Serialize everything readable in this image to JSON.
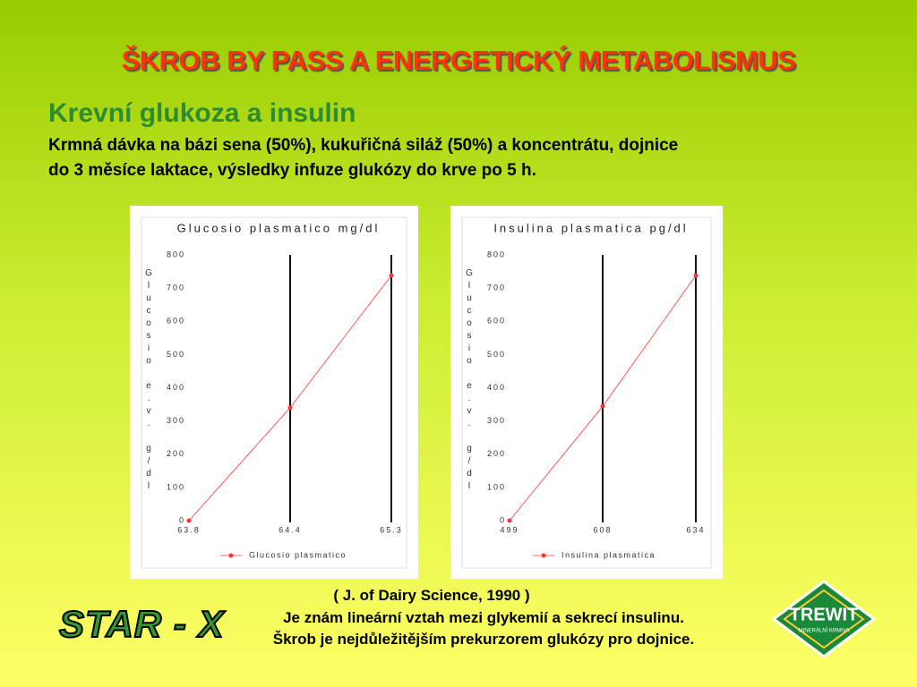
{
  "slide": {
    "title": "ŠKROB BY PASS  A ENERGETICKÝ METABOLISMUS",
    "heading": "Krevní glukoza a insulin",
    "description": [
      "Krmná dávka na bázi sena (50%), kukuřičná siláž (50%) a koncentrátu, dojnice",
      "do 3 měsíce laktace, výsledky infuze glukózy do krve po 5 h."
    ],
    "reference": "( J. of Dairy Science, 1990 )",
    "conclusion": [
      "Je znám lineární vztah mezi  glykemií a sekrecí  insulinu.",
      "Škrob je nejdůležitějším prekurzorem glukózy pro dojnice."
    ],
    "logo_left": "STAR - X",
    "logo_right": "TREWIT",
    "logo_right_sub": "MINERÁLNÍ KRMIVA"
  },
  "chart_data": [
    {
      "type": "line",
      "title": "Glucosio plasmatico mg/dl",
      "y_label": "Glucosio e.v. g/dl",
      "categories": [
        "63.8",
        "64.4",
        "65.3"
      ],
      "series": [
        {
          "name": "Glucosio plasmatico",
          "color": "#ff3333",
          "values": [
            0,
            340,
            738
          ]
        }
      ],
      "ylim": [
        0,
        800
      ],
      "yticks": [
        0,
        100,
        200,
        300,
        400,
        500,
        600,
        700,
        800
      ]
    },
    {
      "type": "line",
      "title": "Insulina plasmatica pg/dl",
      "y_label": "Glucosio e.v. g/dl",
      "categories": [
        "499",
        "608",
        "634"
      ],
      "series": [
        {
          "name": "Insulina plasmatica",
          "color": "#ff3333",
          "values": [
            0,
            344,
            738
          ]
        }
      ],
      "ylim": [
        0,
        800
      ],
      "yticks": [
        0,
        100,
        200,
        300,
        400,
        500,
        600,
        700,
        800
      ]
    }
  ]
}
